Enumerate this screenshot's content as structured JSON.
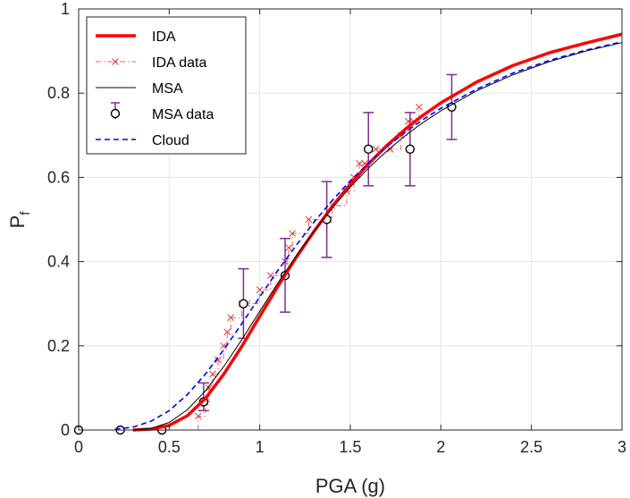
{
  "chart_data": {
    "type": "line",
    "title": "",
    "xlabel": "PGA (g)",
    "ylabel": "P",
    "ylabel_subscript": "f",
    "xlim": [
      0,
      3
    ],
    "ylim": [
      0,
      1
    ],
    "xticks": [
      0,
      0.5,
      1,
      1.5,
      2,
      2.5,
      3
    ],
    "xtick_labels": [
      "0",
      "0.5",
      "1",
      "1.5",
      "2",
      "2.5",
      "3"
    ],
    "yticks": [
      0,
      0.2,
      0.4,
      0.6,
      0.8,
      1
    ],
    "ytick_labels": [
      "0",
      "0.2",
      "0.4",
      "0.6",
      "0.8",
      "1"
    ],
    "grid": true,
    "legend_position": "top-left",
    "series": [
      {
        "name": "IDA",
        "style": "solid-thick",
        "color": "#ff0000",
        "x": [
          0.3,
          0.4,
          0.5,
          0.6,
          0.7,
          0.8,
          0.9,
          1.0,
          1.1,
          1.2,
          1.3,
          1.4,
          1.5,
          1.6,
          1.7,
          1.8,
          1.9,
          2.0,
          2.2,
          2.4,
          2.6,
          2.8,
          3.0
        ],
        "y": [
          0.0,
          0.002,
          0.011,
          0.034,
          0.075,
          0.132,
          0.198,
          0.27,
          0.341,
          0.409,
          0.472,
          0.531,
          0.584,
          0.632,
          0.675,
          0.713,
          0.747,
          0.777,
          0.827,
          0.866,
          0.896,
          0.919,
          0.94
        ]
      },
      {
        "name": "IDA data",
        "style": "dash-dot-x",
        "color": "#e83a3a",
        "x": [
          0.66,
          0.7,
          0.72,
          0.74,
          0.77,
          0.8,
          0.82,
          0.84,
          0.9,
          0.93,
          1.0,
          1.06,
          1.14,
          1.16,
          1.18,
          1.27,
          1.38,
          1.4,
          1.48,
          1.52,
          1.55,
          1.58,
          1.6,
          1.64,
          1.72,
          1.78,
          1.82,
          1.85,
          1.88
        ],
        "y": [
          0.033,
          0.067,
          0.1,
          0.133,
          0.167,
          0.2,
          0.233,
          0.267,
          0.3,
          0.3,
          0.333,
          0.367,
          0.4,
          0.433,
          0.467,
          0.5,
          0.5,
          0.533,
          0.567,
          0.6,
          0.633,
          0.633,
          0.667,
          0.667,
          0.667,
          0.7,
          0.733,
          0.733,
          0.767
        ]
      },
      {
        "name": "MSA",
        "style": "solid-thin",
        "color": "#000000",
        "x": [
          0.3,
          0.4,
          0.5,
          0.6,
          0.7,
          0.8,
          0.9,
          1.0,
          1.1,
          1.2,
          1.3,
          1.4,
          1.5,
          1.6,
          1.7,
          1.8,
          1.9,
          2.0,
          2.2,
          2.4,
          2.6,
          2.8,
          3.0
        ],
        "y": [
          0.001,
          0.004,
          0.018,
          0.048,
          0.093,
          0.15,
          0.214,
          0.282,
          0.349,
          0.413,
          0.472,
          0.527,
          0.577,
          0.622,
          0.662,
          0.698,
          0.73,
          0.758,
          0.806,
          0.844,
          0.875,
          0.9,
          0.92
        ]
      },
      {
        "name": "MSA data",
        "style": "markers-errorbars",
        "color": "#000000",
        "errorbar_color": "#7e2f8e",
        "x": [
          0,
          0.23,
          0.46,
          0.69,
          0.91,
          1.14,
          1.37,
          1.6,
          1.83,
          2.06
        ],
        "y": [
          0,
          0,
          0,
          0.067,
          0.3,
          0.367,
          0.5,
          0.667,
          0.667,
          0.767
        ],
        "err_low": [
          0,
          0,
          0,
          0.021,
          0.082,
          0.087,
          0.09,
          0.087,
          0.087,
          0.077
        ],
        "err_high": [
          0,
          0,
          0,
          0.045,
          0.083,
          0.088,
          0.09,
          0.087,
          0.087,
          0.077
        ]
      },
      {
        "name": "Cloud",
        "style": "dashed",
        "color": "#0000ff",
        "x": [
          0.2,
          0.3,
          0.4,
          0.5,
          0.6,
          0.7,
          0.8,
          0.9,
          1.0,
          1.1,
          1.2,
          1.3,
          1.4,
          1.5,
          1.6,
          1.7,
          1.8,
          1.9,
          2.0,
          2.2,
          2.4,
          2.6,
          2.8,
          3.0
        ],
        "y": [
          0.002,
          0.007,
          0.021,
          0.046,
          0.084,
          0.133,
          0.19,
          0.252,
          0.316,
          0.379,
          0.438,
          0.494,
          0.545,
          0.592,
          0.634,
          0.672,
          0.706,
          0.737,
          0.764,
          0.81,
          0.848,
          0.878,
          0.902,
          0.922
        ]
      }
    ]
  }
}
